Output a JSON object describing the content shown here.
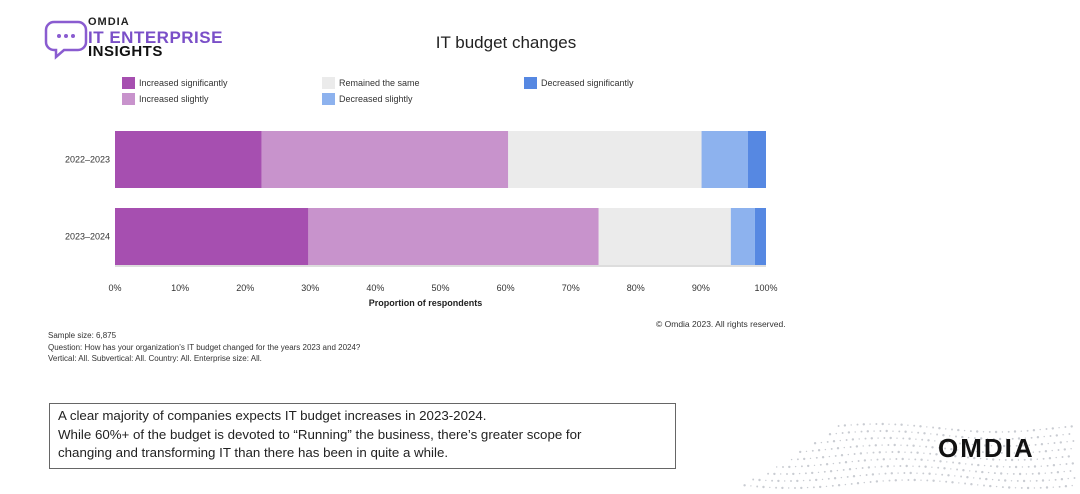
{
  "logo": {
    "brand_small": "OMDIA",
    "line1": "IT ENTERPRISE",
    "line2": "INSIGHTS"
  },
  "legend": {
    "items": [
      {
        "label": "Increased significantly",
        "color": "#a64fb0"
      },
      {
        "label": "Increased slightly",
        "color": "#c893cc"
      },
      {
        "label": "Remained the same",
        "color": "#ebebeb"
      },
      {
        "label": "Decreased slightly",
        "color": "#8db2ee"
      },
      {
        "label": "Decreased significantly",
        "color": "#5688e2"
      }
    ]
  },
  "chart_data": {
    "type": "bar",
    "orientation": "horizontal",
    "stacked": true,
    "title": "IT budget changes",
    "xlabel": "Proportion of respondents",
    "ylabel": "",
    "xlim": [
      0,
      100
    ],
    "x_ticks": [
      "0%",
      "10%",
      "20%",
      "30%",
      "40%",
      "50%",
      "60%",
      "70%",
      "80%",
      "90%",
      "100%"
    ],
    "categories": [
      "2022–2023",
      "2023–2024"
    ],
    "series": [
      {
        "name": "Increased significantly",
        "values": [
          22.5,
          29.7
        ]
      },
      {
        "name": "Increased slightly",
        "values": [
          37.9,
          44.6
        ]
      },
      {
        "name": "Remained the same",
        "values": [
          29.7,
          20.3
        ]
      },
      {
        "name": "Decreased slightly",
        "values": [
          7.1,
          3.7
        ]
      },
      {
        "name": "Decreased significantly",
        "values": [
          2.8,
          1.7
        ]
      }
    ],
    "grid": false,
    "legend_position": "top"
  },
  "notes": {
    "sample": "Sample size: 6,875",
    "question": "Question: How has your organization’s IT budget changed for the years 2023 and 2024?",
    "filters": "Vertical: All. Subvertical: All. Country: All. Enterprise size: All."
  },
  "copyright": "© Omdia 2023. All rights reserved.",
  "textbox": {
    "line1": "A clear majority of companies expects IT budget increases in 2023-2024.",
    "line2": "While 60%+ of the budget is devoted to “Running” the business, there’s greater scope for",
    "line3": "changing and transforming IT than there has been in quite a while."
  },
  "footer_brand": "OMDIA"
}
